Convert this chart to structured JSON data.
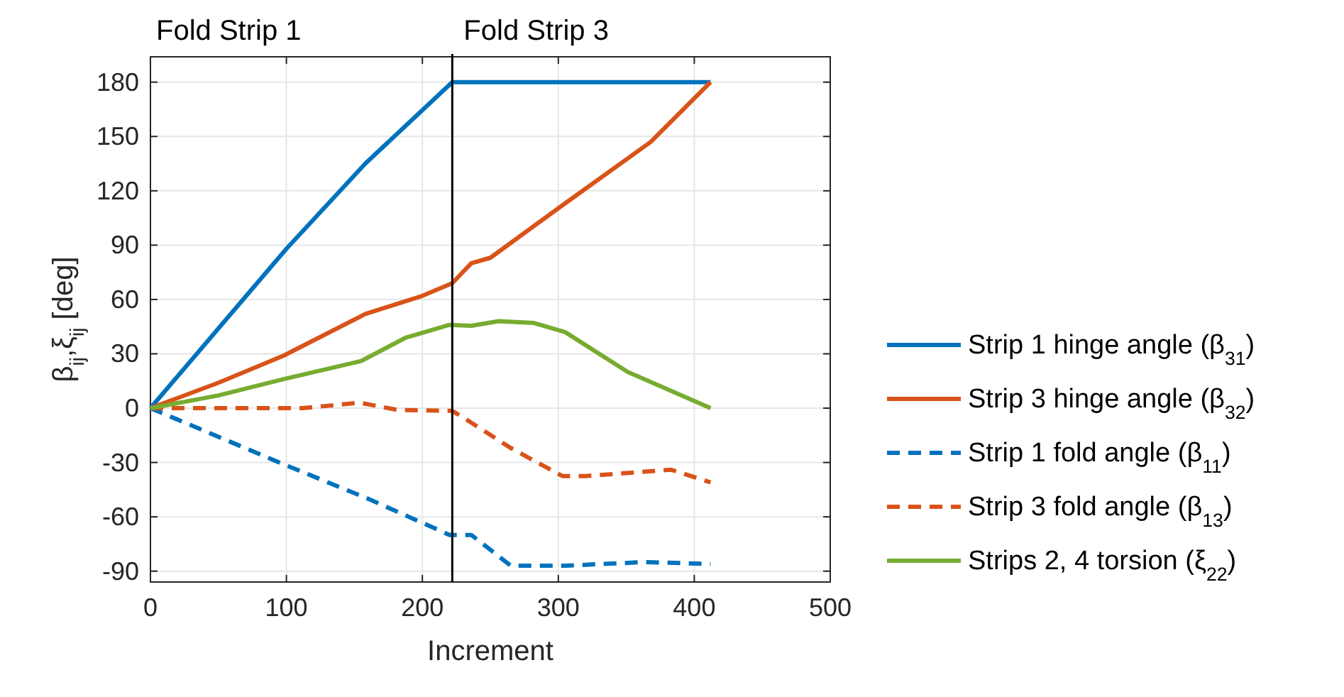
{
  "chart_data": {
    "type": "line",
    "xlabel": "Increment",
    "ylabel": "β$_{ij}$,ξ$_{ij}$ [deg]",
    "xlim": [
      0,
      500
    ],
    "ylim": [
      -96,
      194
    ],
    "xticks": [
      0,
      100,
      200,
      300,
      400,
      500
    ],
    "yticks": [
      -90,
      -60,
      -30,
      0,
      30,
      60,
      90,
      120,
      150,
      180
    ],
    "grid": true,
    "legend": "right",
    "ref_lines": [
      {
        "axis": "x",
        "value": 222,
        "color": "#000000"
      }
    ],
    "annotations": [
      "Fold Strip 1",
      "Fold Strip 3"
    ],
    "series": [
      {
        "name": "Strip 1 hinge angle (β$_{31}$)",
        "color": "#0072bd",
        "line_style": "solid",
        "x": [
          0,
          50,
          100,
          158,
          222,
          412
        ],
        "values": [
          0,
          44,
          88,
          135,
          180,
          180
        ]
      },
      {
        "name": "Strip 3 hinge angle (β$_{32}$)",
        "color": "#d95319",
        "line_style": "solid",
        "x": [
          0,
          50,
          98,
          158,
          200,
          222,
          236,
          250,
          303,
          368,
          412
        ],
        "values": [
          0,
          14,
          29,
          52,
          62,
          69,
          80,
          83,
          112,
          147,
          180
        ]
      },
      {
        "name": "Strip 1 fold angle (β$_{11}$)",
        "color": "#0072bd",
        "line_style": "dashed",
        "x": [
          0,
          98,
          160,
          220,
          236,
          265,
          305,
          363,
          412
        ],
        "values": [
          0,
          -31,
          -50,
          -70,
          -70,
          -87,
          -87,
          -85,
          -86
        ]
      },
      {
        "name": "Strip 3 fold angle (β$_{13}$)",
        "color": "#d95319",
        "line_style": "dashed",
        "x": [
          0,
          112,
          154,
          182,
          222,
          236,
          265,
          303,
          320,
          383,
          412
        ],
        "values": [
          0,
          0,
          3,
          -1,
          -1.5,
          -8,
          -22,
          -37.5,
          -37.5,
          -34,
          -41
        ]
      },
      {
        "name": "Strips 2, 4 torsion (ξ$_{22}$)",
        "color": "#77ac30",
        "line_style": "solid",
        "x": [
          0,
          50,
          98,
          155,
          188,
          220,
          236,
          256,
          282,
          305,
          351,
          412
        ],
        "values": [
          0,
          7,
          16,
          26,
          39,
          46,
          45.5,
          48,
          47,
          42,
          20,
          0
        ]
      }
    ]
  }
}
